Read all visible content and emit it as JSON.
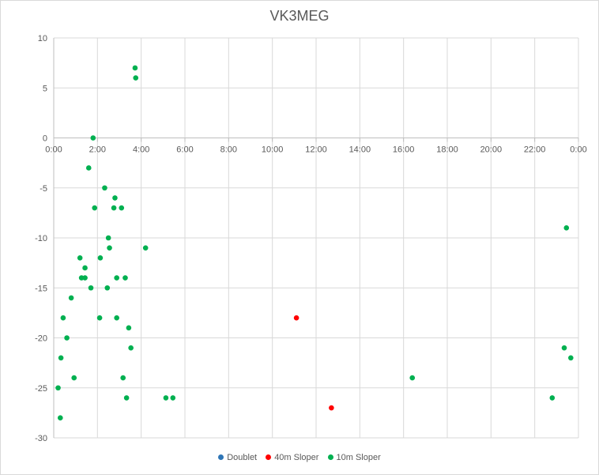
{
  "chart_data": {
    "type": "scatter",
    "title": "VK3MEG",
    "xlabel": "",
    "ylabel": "",
    "xlim": [
      0,
      24
    ],
    "ylim": [
      -30,
      10
    ],
    "x_ticks": [
      "0:00",
      "2:00",
      "4:00",
      "6:00",
      "8:00",
      "10:00",
      "12:00",
      "14:00",
      "16:00",
      "18:00",
      "20:00",
      "22:00",
      "0:00"
    ],
    "y_ticks": [
      10,
      5,
      0,
      -5,
      -10,
      -15,
      -20,
      -25,
      -30
    ],
    "grid": true,
    "legend_position": "bottom",
    "series": [
      {
        "name": "Doublet",
        "color": "#2e75b6",
        "points": []
      },
      {
        "name": "40m Sloper",
        "color": "#ff0000",
        "points": [
          {
            "x": 11.1,
            "y": -18
          },
          {
            "x": 12.7,
            "y": -27
          }
        ]
      },
      {
        "name": "10m Sloper",
        "color": "#00b050",
        "points": [
          {
            "x": 0.2,
            "y": -25
          },
          {
            "x": 0.3,
            "y": -28
          },
          {
            "x": 0.33,
            "y": -22
          },
          {
            "x": 0.43,
            "y": -18
          },
          {
            "x": 0.6,
            "y": -20
          },
          {
            "x": 0.8,
            "y": -16
          },
          {
            "x": 0.93,
            "y": -24
          },
          {
            "x": 1.2,
            "y": -12
          },
          {
            "x": 1.27,
            "y": -14
          },
          {
            "x": 1.43,
            "y": -14
          },
          {
            "x": 1.43,
            "y": -13
          },
          {
            "x": 1.6,
            "y": -3
          },
          {
            "x": 1.7,
            "y": -15
          },
          {
            "x": 1.8,
            "y": 0
          },
          {
            "x": 1.87,
            "y": -7
          },
          {
            "x": 2.1,
            "y": -18
          },
          {
            "x": 2.13,
            "y": -12
          },
          {
            "x": 2.33,
            "y": -5
          },
          {
            "x": 2.45,
            "y": -15
          },
          {
            "x": 2.5,
            "y": -10
          },
          {
            "x": 2.55,
            "y": -11
          },
          {
            "x": 2.75,
            "y": -7
          },
          {
            "x": 2.8,
            "y": -6
          },
          {
            "x": 2.88,
            "y": -14
          },
          {
            "x": 2.88,
            "y": -18
          },
          {
            "x": 3.1,
            "y": -7
          },
          {
            "x": 3.17,
            "y": -24
          },
          {
            "x": 3.27,
            "y": -14
          },
          {
            "x": 3.33,
            "y": -26
          },
          {
            "x": 3.43,
            "y": -19
          },
          {
            "x": 3.53,
            "y": -21
          },
          {
            "x": 3.72,
            "y": 7
          },
          {
            "x": 3.75,
            "y": 6
          },
          {
            "x": 4.2,
            "y": -11
          },
          {
            "x": 5.13,
            "y": -26
          },
          {
            "x": 5.45,
            "y": -26
          },
          {
            "x": 16.4,
            "y": -24
          },
          {
            "x": 22.8,
            "y": -26
          },
          {
            "x": 23.35,
            "y": -21
          },
          {
            "x": 23.45,
            "y": -9
          },
          {
            "x": 23.65,
            "y": -22
          }
        ]
      }
    ]
  }
}
